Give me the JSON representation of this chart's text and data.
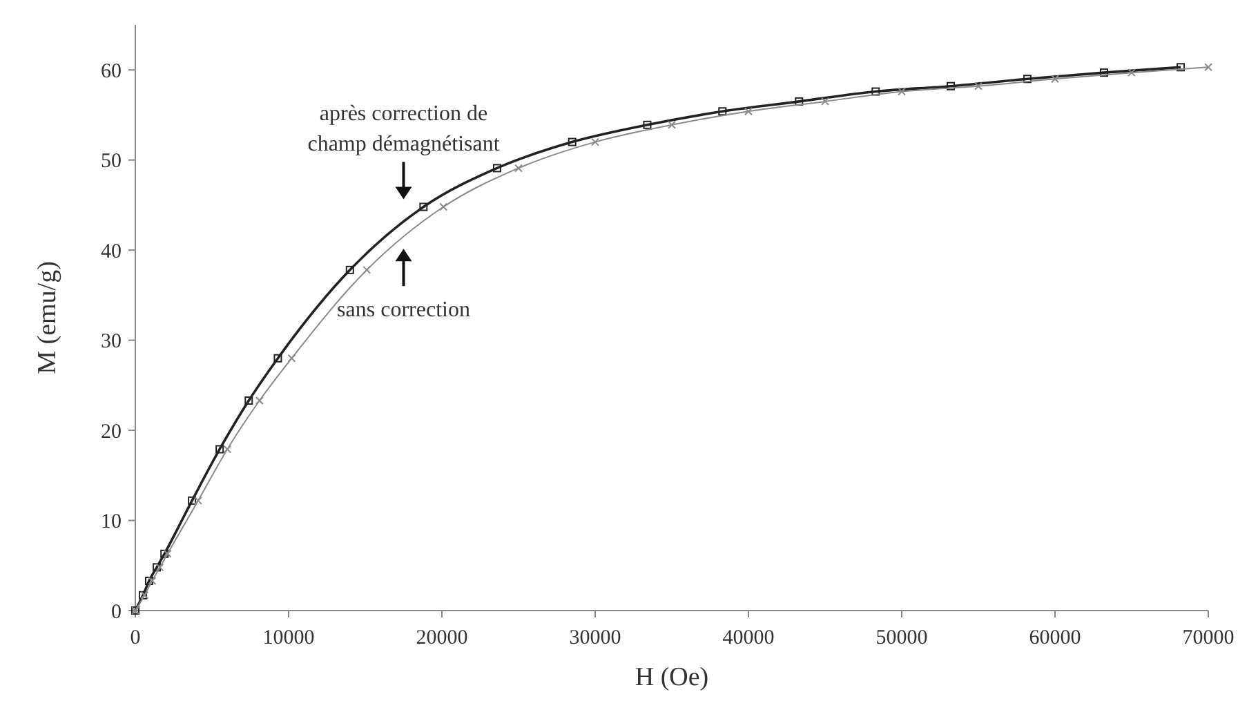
{
  "chart_data": {
    "type": "line",
    "xlabel": "H (Oe)",
    "ylabel": "M (emu/g)",
    "xlim": [
      0,
      70000
    ],
    "xticks": [
      0,
      10000,
      20000,
      30000,
      40000,
      50000,
      60000,
      70000
    ],
    "ylim": [
      0,
      65
    ],
    "yticks": [
      0,
      10,
      20,
      30,
      40,
      50,
      60
    ],
    "grid": false,
    "line_style": "solid",
    "series": [
      {
        "color": "#222222",
        "marker": "square",
        "x": [
          0,
          500,
          900,
          1400,
          1900,
          3700,
          5500,
          7400,
          9300,
          14000,
          18800,
          23600,
          28500,
          33400,
          38300,
          43300,
          48300,
          53200,
          58200,
          63200,
          68200
        ],
        "values": [
          0,
          1.7,
          3.3,
          4.8,
          6.3,
          12.2,
          17.9,
          23.3,
          28,
          37.8,
          44.8,
          49.1,
          52,
          53.9,
          55.4,
          56.5,
          57.6,
          58.2,
          59,
          59.7,
          60.3
        ]
      },
      {
        "color": "#8a8a8a",
        "marker": "cross",
        "x": [
          0,
          600,
          1100,
          1600,
          2100,
          4100,
          6000,
          8100,
          10200,
          15100,
          20100,
          25000,
          30000,
          35000,
          40000,
          45000,
          50000,
          55000,
          60000,
          65000,
          70000
        ],
        "values": [
          0,
          1.7,
          3.3,
          4.8,
          6.3,
          12.2,
          17.9,
          23.3,
          28,
          37.8,
          44.8,
          49.1,
          52,
          53.9,
          55.4,
          56.5,
          57.6,
          58.2,
          59,
          59.7,
          60.3
        ]
      }
    ],
    "annotations": [
      "après correction de champ démagnétisant",
      "sans correction"
    ]
  }
}
